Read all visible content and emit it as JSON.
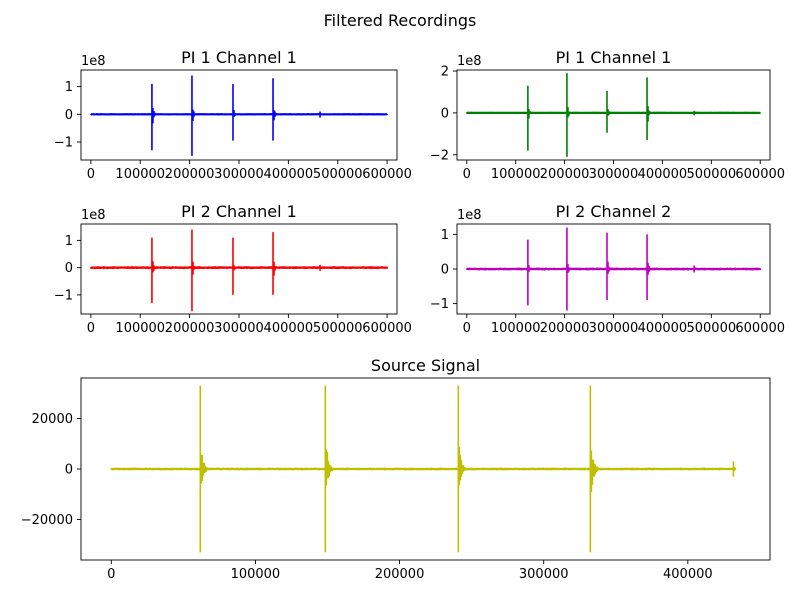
{
  "figure": {
    "suptitle": "Filtered Recordings"
  },
  "chart_data": [
    {
      "type": "line",
      "title": "PI 1 Channel 1",
      "offset_text": "1e8",
      "color": "#0000ff",
      "xlim": [
        -20000,
        620000
      ],
      "ylim": [
        -1.65,
        1.6
      ],
      "xticks": [
        0,
        100000,
        200000,
        300000,
        400000,
        500000,
        600000
      ],
      "xtick_labels": [
        "0",
        "100000",
        "200000",
        "300000",
        "400000",
        "500000",
        "600000"
      ],
      "yticks": [
        1,
        0,
        -1
      ],
      "ytick_labels": [
        "1",
        "0",
        "−1"
      ],
      "noise": 0.03,
      "spikes": [
        {
          "x": 125000,
          "up": 1.1,
          "down": -1.3
        },
        {
          "x": 205000,
          "up": 1.4,
          "down": -1.5
        },
        {
          "x": 288000,
          "up": 1.1,
          "down": -0.95
        },
        {
          "x": 370000,
          "up": 1.3,
          "down": -0.95
        },
        {
          "x": 465000,
          "up": 0.1,
          "down": -0.12
        }
      ]
    },
    {
      "type": "line",
      "title": "PI 1 Channel 1",
      "offset_text": "1e8",
      "color": "#008000",
      "xlim": [
        -20000,
        620000
      ],
      "ylim": [
        -2.25,
        2.05
      ],
      "xticks": [
        0,
        100000,
        200000,
        300000,
        400000,
        500000,
        600000
      ],
      "xtick_labels": [
        "0",
        "100000",
        "200000",
        "300000",
        "400000",
        "500000",
        "600000"
      ],
      "yticks": [
        2,
        0,
        -2
      ],
      "ytick_labels": [
        "2",
        "0",
        "−2"
      ],
      "noise": 0.04,
      "spikes": [
        {
          "x": 125000,
          "up": 1.3,
          "down": -1.8
        },
        {
          "x": 205000,
          "up": 1.9,
          "down": -2.1
        },
        {
          "x": 288000,
          "up": 1.05,
          "down": -0.95
        },
        {
          "x": 370000,
          "up": 1.7,
          "down": -1.3
        },
        {
          "x": 465000,
          "up": 0.1,
          "down": -0.12
        }
      ]
    },
    {
      "type": "line",
      "title": "PI 2 Channel 1",
      "offset_text": "1e8",
      "color": "#ff0000",
      "xlim": [
        -20000,
        620000
      ],
      "ylim": [
        -1.7,
        1.6
      ],
      "xticks": [
        0,
        100000,
        200000,
        300000,
        400000,
        500000,
        600000
      ],
      "xtick_labels": [
        "0",
        "100000",
        "200000",
        "300000",
        "400000",
        "500000",
        "600000"
      ],
      "yticks": [
        1,
        0,
        -1
      ],
      "ytick_labels": [
        "1",
        "0",
        "−1"
      ],
      "noise": 0.04,
      "spikes": [
        {
          "x": 125000,
          "up": 1.1,
          "down": -1.3
        },
        {
          "x": 205000,
          "up": 1.4,
          "down": -1.6
        },
        {
          "x": 288000,
          "up": 1.1,
          "down": -1.0
        },
        {
          "x": 370000,
          "up": 1.3,
          "down": -1.0
        },
        {
          "x": 465000,
          "up": 0.1,
          "down": -0.12
        }
      ]
    },
    {
      "type": "line",
      "title": "PI 2 Channel 2",
      "offset_text": "1e8",
      "color": "#bf00bf",
      "xlim": [
        -20000,
        620000
      ],
      "ylim": [
        -1.3,
        1.3
      ],
      "xticks": [
        0,
        100000,
        200000,
        300000,
        400000,
        500000,
        600000
      ],
      "xtick_labels": [
        "0",
        "100000",
        "200000",
        "300000",
        "400000",
        "500000",
        "600000"
      ],
      "yticks": [
        1,
        0,
        -1
      ],
      "ytick_labels": [
        "1",
        "0",
        "−1"
      ],
      "noise": 0.03,
      "spikes": [
        {
          "x": 125000,
          "up": 0.85,
          "down": -1.05
        },
        {
          "x": 205000,
          "up": 1.2,
          "down": -1.2
        },
        {
          "x": 288000,
          "up": 1.05,
          "down": -0.9
        },
        {
          "x": 370000,
          "up": 1.0,
          "down": -0.9
        },
        {
          "x": 465000,
          "up": 0.1,
          "down": -0.1
        }
      ]
    },
    {
      "type": "line",
      "title": "Source Signal",
      "offset_text": "",
      "color": "#bfbf00",
      "xlim": [
        -21000,
        457000
      ],
      "ylim": [
        -36000,
        36000
      ],
      "xticks": [
        0,
        100000,
        200000,
        300000,
        400000
      ],
      "xtick_labels": [
        "0",
        "100000",
        "200000",
        "300000",
        "400000"
      ],
      "yticks": [
        20000,
        0,
        -20000
      ],
      "ytick_labels": [
        "20000",
        "0",
        "−20000"
      ],
      "noise": 400,
      "spikes": [
        {
          "x": 62000,
          "up": 33000,
          "down": -33000
        },
        {
          "x": 149000,
          "up": 33000,
          "down": -33000
        },
        {
          "x": 241000,
          "up": 33000,
          "down": -33000
        },
        {
          "x": 333000,
          "up": 33000,
          "down": -33000
        },
        {
          "x": 432000,
          "up": 3000,
          "down": -3000
        }
      ],
      "x_end": 433000
    }
  ]
}
